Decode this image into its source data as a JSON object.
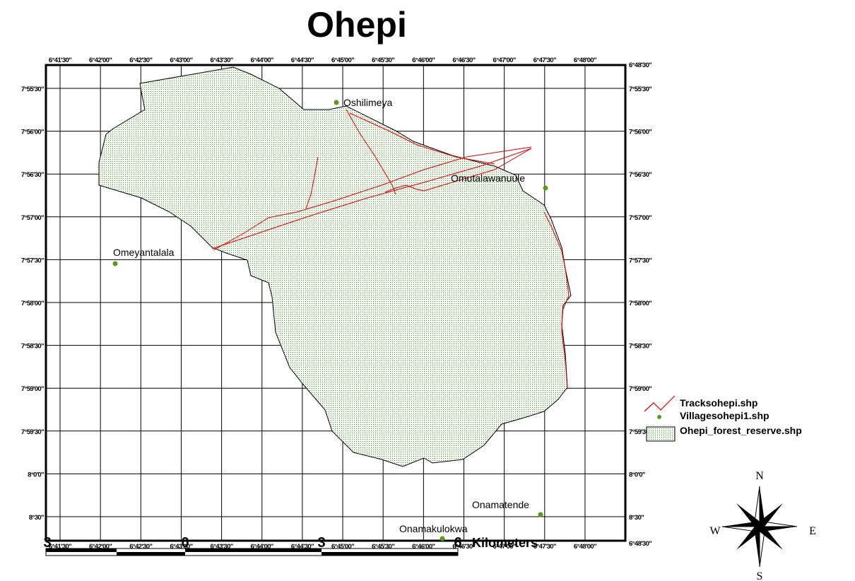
{
  "title": "Ohepi",
  "longitude_labels": [
    "6°41'30\"",
    "6°42'00\"",
    "6°42'30\"",
    "6°43'00\"",
    "6°43'30\"",
    "6°44'00\"",
    "6°44'30\"",
    "6°45'00\"",
    "6°45'30\"",
    "6°46'00\"",
    "6°46'30\"",
    "6°47'00\"",
    "6°47'30\"",
    "6°48'00\""
  ],
  "corner_label": "6°48'30\"",
  "latitude_labels": [
    "7°55'30\"",
    "7°56'00\"",
    "7°56'30\"",
    "7°57'00\"",
    "7°57'30\"",
    "7°58'00\"",
    "7°58'30\"",
    "7°59'00\"",
    "7°59'30\"",
    "8°0'0\"",
    "8°30\""
  ],
  "villages": [
    "Oshilimeya",
    "Omutalawanuule",
    "Omeyantalala",
    "Onamatende",
    "Onamakulokwa"
  ],
  "legend": [
    "Tracksohepi.shp",
    "Villagesohepi1.shp",
    "Ohepi_forest_reserve.shp"
  ],
  "compass": {
    "north": "N",
    "east": "E",
    "south": "S",
    "west": "W"
  },
  "scale_bar": {
    "labels": [
      "3",
      "0",
      "3",
      "6"
    ],
    "unit": "Kilometers"
  }
}
